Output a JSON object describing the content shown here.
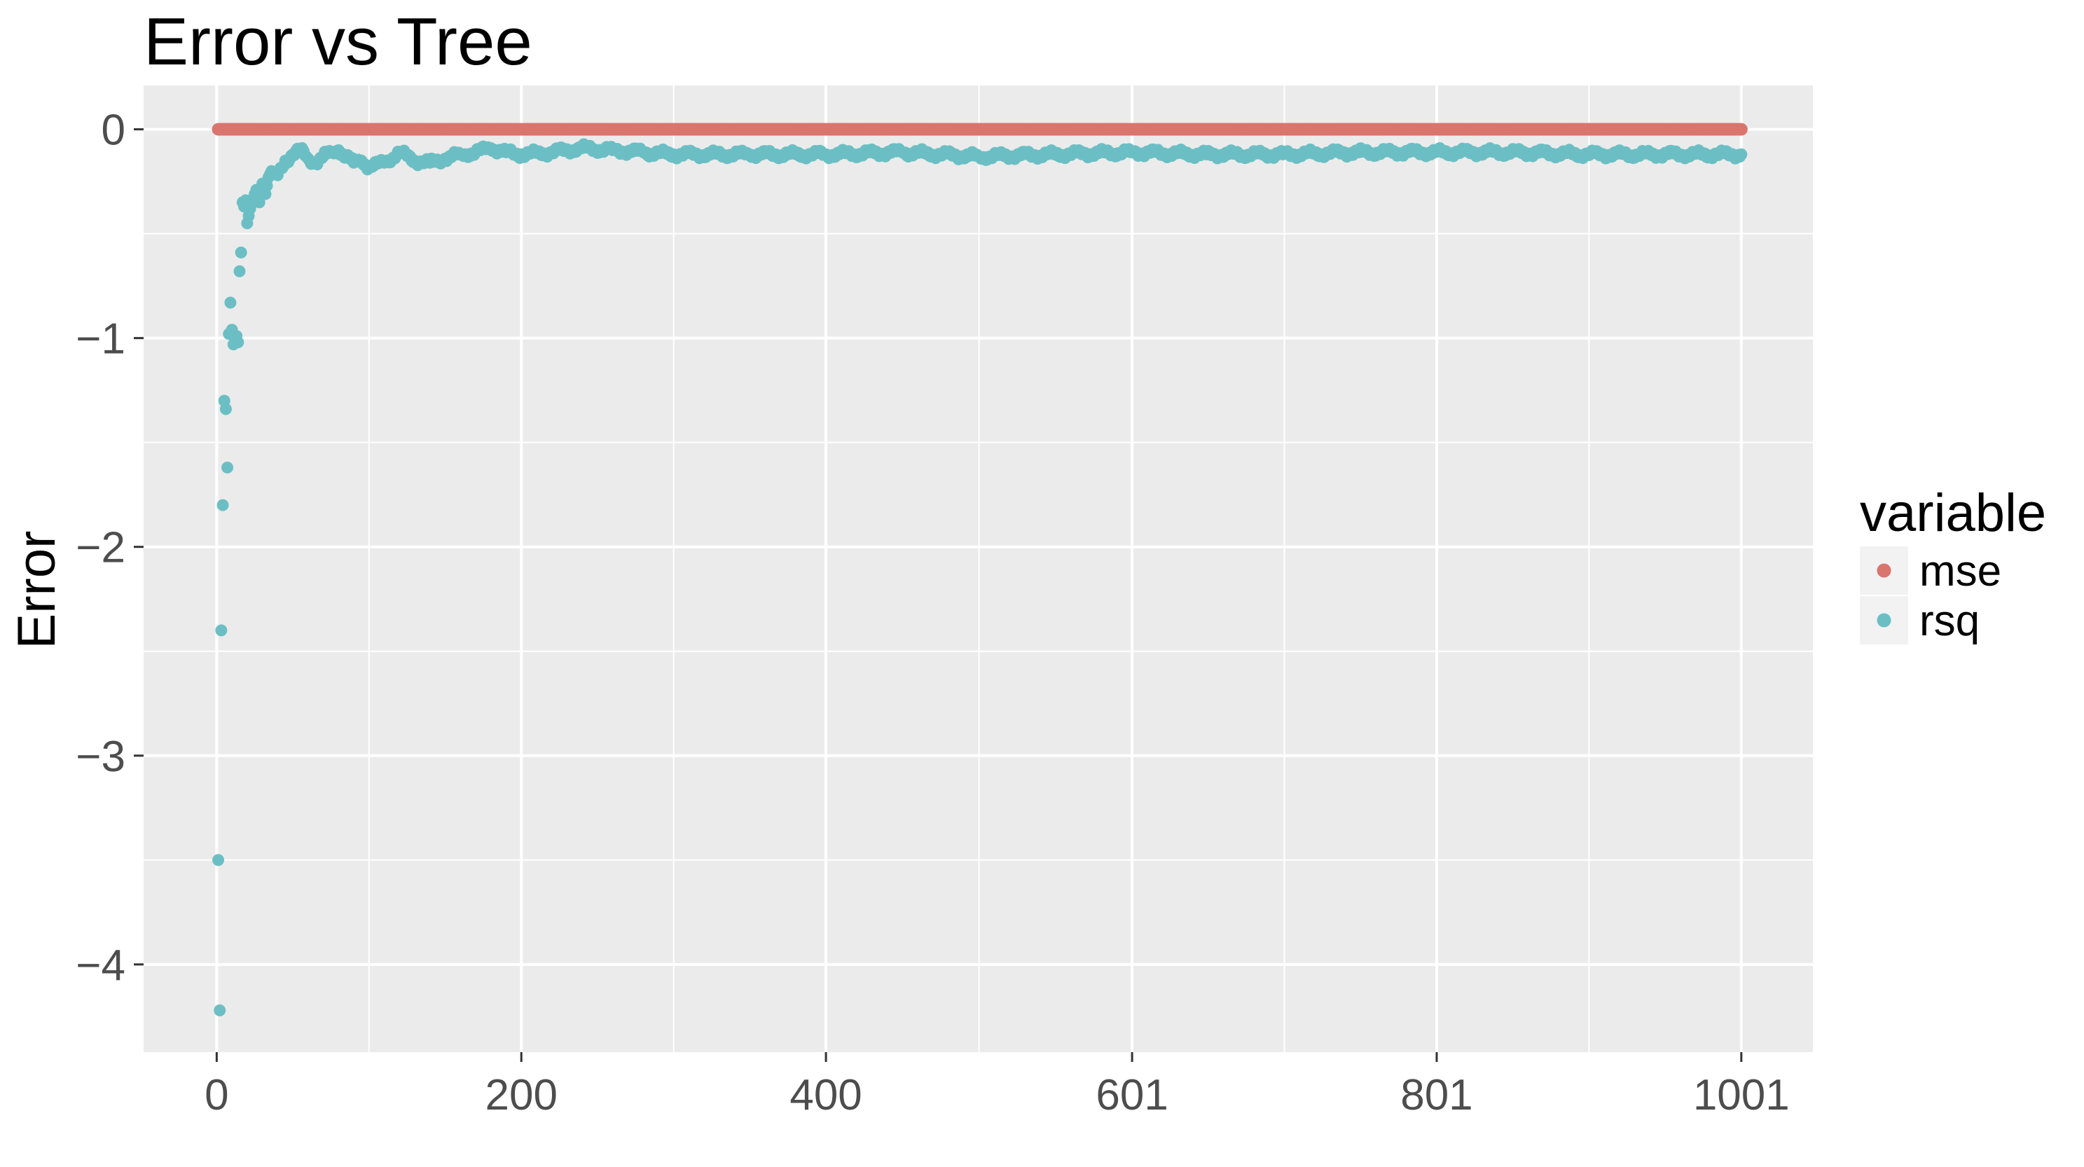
{
  "chart_data": {
    "type": "scatter",
    "title": "Error vs Tree",
    "xlabel": "",
    "ylabel": "Error",
    "x_ticks": [
      "0",
      "200",
      "400",
      "601",
      "801",
      "1001"
    ],
    "y_ticks": [
      "0",
      "−1",
      "−2",
      "−3",
      "−4"
    ],
    "xlim": [
      -48,
      1048
    ],
    "ylim": [
      -4.42,
      0.21
    ],
    "grid": true,
    "legend": {
      "title": "variable",
      "placement": "right",
      "entries": [
        {
          "name": "mse",
          "color": "#D9756C"
        },
        {
          "name": "rsq",
          "color": "#6BBFC4"
        }
      ]
    },
    "series": [
      {
        "name": "mse",
        "color": "#D9756C",
        "x_range": [
          1,
          1001
        ],
        "constant_y": 0
      },
      {
        "name": "rsq",
        "color": "#6BBFC4",
        "points": [
          [
            1,
            -3.5
          ],
          [
            2,
            -4.22
          ],
          [
            3,
            -2.4
          ],
          [
            4,
            -1.8
          ],
          [
            5,
            -1.3
          ],
          [
            6,
            -1.34
          ],
          [
            7,
            -1.62
          ],
          [
            8,
            -0.98
          ],
          [
            9,
            -0.83
          ],
          [
            10,
            -0.96
          ],
          [
            11,
            -1.03
          ],
          [
            12,
            -1.0
          ],
          [
            13,
            -0.99
          ],
          [
            14,
            -1.02
          ],
          [
            15,
            -0.68
          ],
          [
            16,
            -0.59
          ],
          [
            17,
            -0.35
          ],
          [
            18,
            -0.37
          ],
          [
            19,
            -0.34
          ],
          [
            20,
            -0.45
          ],
          [
            22,
            -0.38
          ],
          [
            24,
            -0.33
          ],
          [
            26,
            -0.29
          ],
          [
            28,
            -0.35
          ],
          [
            30,
            -0.26
          ],
          [
            32,
            -0.31
          ],
          [
            34,
            -0.23
          ],
          [
            36,
            -0.2
          ],
          [
            40,
            -0.22
          ],
          [
            45,
            -0.15
          ],
          [
            50,
            -0.12
          ],
          [
            55,
            -0.1
          ],
          [
            60,
            -0.14
          ],
          [
            65,
            -0.16
          ],
          [
            70,
            -0.13
          ],
          [
            75,
            -0.11
          ],
          [
            80,
            -0.1
          ],
          [
            85,
            -0.13
          ],
          [
            90,
            -0.16
          ],
          [
            95,
            -0.15
          ],
          [
            100,
            -0.18
          ],
          [
            110,
            -0.16
          ],
          [
            120,
            -0.11
          ],
          [
            130,
            -0.15
          ],
          [
            140,
            -0.16
          ],
          [
            150,
            -0.14
          ],
          [
            160,
            -0.12
          ],
          [
            170,
            -0.11
          ],
          [
            180,
            -0.09
          ],
          [
            190,
            -0.11
          ],
          [
            200,
            -0.12
          ],
          [
            220,
            -0.11
          ],
          [
            240,
            -0.09
          ],
          [
            260,
            -0.1
          ],
          [
            280,
            -0.11
          ],
          [
            300,
            -0.12
          ],
          [
            350,
            -0.12
          ],
          [
            400,
            -0.12
          ],
          [
            450,
            -0.11
          ],
          [
            500,
            -0.13
          ],
          [
            550,
            -0.12
          ],
          [
            600,
            -0.11
          ],
          [
            650,
            -0.12
          ],
          [
            700,
            -0.12
          ],
          [
            750,
            -0.11
          ],
          [
            800,
            -0.11
          ],
          [
            850,
            -0.11
          ],
          [
            900,
            -0.12
          ],
          [
            950,
            -0.12
          ],
          [
            1001,
            -0.12
          ]
        ]
      }
    ]
  }
}
